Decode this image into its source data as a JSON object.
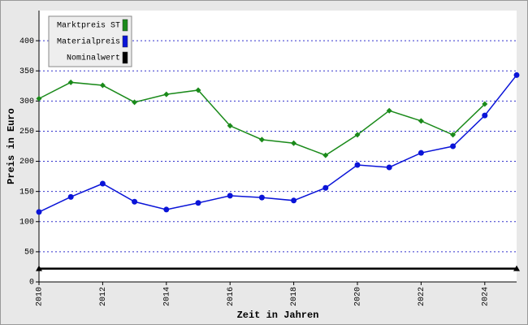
{
  "chart_data": {
    "type": "line",
    "x_label": "Zeit in Jahren",
    "y_label": "Preis in Euro",
    "x": [
      2010,
      2011,
      2012,
      2013,
      2014,
      2015,
      2016,
      2017,
      2018,
      2019,
      2020,
      2021,
      2022,
      2023,
      2024,
      2025
    ],
    "series": [
      {
        "name": "Marktpreis ST",
        "color": "#1a8a1a",
        "marker": "diamond",
        "values": [
          304,
          331,
          326,
          298,
          311,
          318,
          259,
          236,
          230,
          210,
          244,
          284,
          267,
          244,
          295,
          null
        ]
      },
      {
        "name": "Materialpreis",
        "color": "#0a14d8",
        "marker": "circle",
        "values": [
          116,
          141,
          163,
          133,
          120,
          131,
          143,
          140,
          135,
          156,
          194,
          190,
          214,
          225,
          276,
          343
        ]
      },
      {
        "name": "Nominalwert",
        "color": "#000000",
        "marker": "triangle-ends",
        "values": [
          22,
          22,
          22,
          22,
          22,
          22,
          22,
          22,
          22,
          22,
          22,
          22,
          22,
          22,
          22,
          22
        ]
      }
    ],
    "xlim": [
      2010,
      2025
    ],
    "xticks": [
      2010,
      2012,
      2014,
      2016,
      2018,
      2020,
      2022,
      2024
    ],
    "ylim": [
      0,
      450
    ],
    "yticks": [
      0,
      50,
      100,
      150,
      200,
      250,
      300,
      350,
      400
    ],
    "grid": true,
    "legend": "top-left"
  }
}
